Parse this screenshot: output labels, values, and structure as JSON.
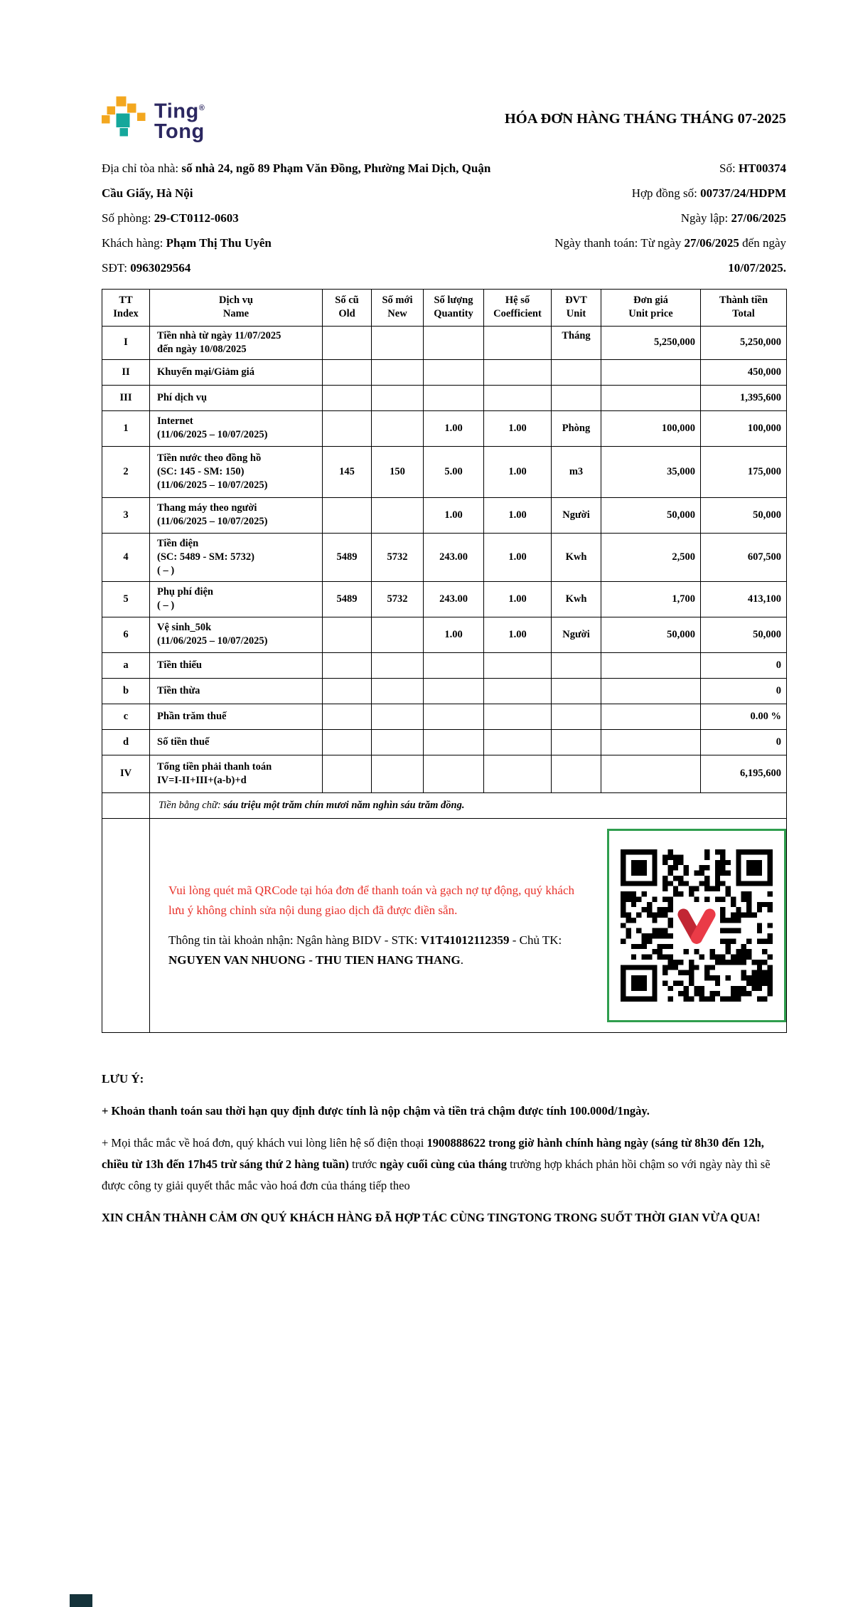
{
  "logo": {
    "line1": "Ting",
    "line2": "Tong",
    "registered": "®"
  },
  "colors": {
    "logo_orange": "#F3A71F",
    "logo_teal": "#15A79B",
    "logo_navy": "#2B2760",
    "accent_red": "#E8312A",
    "qr_frame_green": "#2F9E4E",
    "qr_logo_red": "#E23C43"
  },
  "title": "HÓA ĐƠN HÀNG THÁNG THÁNG 07-2025",
  "header_info": {
    "left": [
      {
        "label": "Địa chỉ tòa nhà: ",
        "value": "số nhà 24, ngõ 89 Phạm Văn Đồng, Phường Mai Dịch, Quận Cầu Giấy, Hà Nội"
      },
      {
        "label": "Số phòng: ",
        "value": "29-CT0112-0603"
      },
      {
        "label": "Khách hàng: ",
        "value": "Phạm Thị Thu Uyên"
      },
      {
        "label": "SĐT: ",
        "value": "0963029564"
      }
    ],
    "right": [
      {
        "label": "Số: ",
        "value": "HT00374"
      },
      {
        "label": "Hợp đồng số: ",
        "value": "00737/24/HDPM"
      },
      {
        "label": "Ngày lập: ",
        "value": "27/06/2025"
      },
      {
        "label": "Ngày thanh toán: Từ ngày ",
        "value": "27/06/2025",
        "label2": " đến ngày ",
        "value2": "10/07/2025."
      }
    ]
  },
  "table": {
    "headers": [
      {
        "vi": "TT",
        "en": "Index"
      },
      {
        "vi": "Dịch vụ",
        "en": "Name"
      },
      {
        "vi": "Số cũ",
        "en": "Old"
      },
      {
        "vi": "Số mới",
        "en": "New"
      },
      {
        "vi": "Số lượng",
        "en": "Quantity"
      },
      {
        "vi": "Hệ số",
        "en": "Coefficient"
      },
      {
        "vi": "ĐVT",
        "en": "Unit"
      },
      {
        "vi": "Đơn giá",
        "en": "Unit price"
      },
      {
        "vi": "Thành tiền",
        "en": "Total"
      }
    ],
    "rows": [
      {
        "tt": "I",
        "d1": "Tiền nhà từ ngày 11/07/2025",
        "d2": "đến ngày 10/08/2025",
        "unit": "Tháng",
        "price": "5,250,000",
        "total": "5,250,000"
      },
      {
        "tt": "II",
        "d1": "Khuyến mại/Giảm giá",
        "total": "450,000"
      },
      {
        "tt": "III",
        "d1": "Phí dịch vụ",
        "total": "1,395,600"
      },
      {
        "tt": "1",
        "d1": "Internet",
        "d2": "(11/06/2025 – 10/07/2025)",
        "qty": "1.00",
        "coef": "1.00",
        "unit": "Phòng",
        "price": "100,000",
        "total": "100,000"
      },
      {
        "tt": "2",
        "d1": "Tiền nước theo đồng hồ",
        "d2": "(SC: 145 - SM: 150)",
        "d3": "(11/06/2025 – 10/07/2025)",
        "old": "145",
        "new": "150",
        "qty": "5.00",
        "coef": "1.00",
        "unit": "m3",
        "price": "35,000",
        "total": "175,000"
      },
      {
        "tt": "3",
        "d1": "Thang máy theo người",
        "d2": "(11/06/2025 – 10/07/2025)",
        "qty": "1.00",
        "coef": "1.00",
        "unit": "Người",
        "price": "50,000",
        "total": "50,000"
      },
      {
        "tt": "4",
        "d1": "Tiền điện",
        "d2": "(SC: 5489 - SM: 5732)",
        "d3": "( – )",
        "old": "5489",
        "new": "5732",
        "qty": "243.00",
        "coef": "1.00",
        "unit": "Kwh",
        "price": "2,500",
        "total": "607,500"
      },
      {
        "tt": "5",
        "d1": "Phụ phí điện",
        "d2": "( – )",
        "old": "5489",
        "new": "5732",
        "qty": "243.00",
        "coef": "1.00",
        "unit": "Kwh",
        "price": "1,700",
        "total": "413,100"
      },
      {
        "tt": "6",
        "d1": "Vệ sinh_50k",
        "d2": "(11/06/2025 – 10/07/2025)",
        "qty": "1.00",
        "coef": "1.00",
        "unit": "Người",
        "price": "50,000",
        "total": "50,000"
      },
      {
        "tt": "a",
        "d1": "Tiền thiếu",
        "total": "0"
      },
      {
        "tt": "b",
        "d1": "Tiền thừa",
        "total": "0"
      },
      {
        "tt": "c",
        "d1": "Phần trăm thuế",
        "total": "0.00 %"
      },
      {
        "tt": "d",
        "d1": "Số tiền thuế",
        "total": "0"
      },
      {
        "tt": "IV",
        "d1": "Tổng tiền phải thanh toán",
        "d2": "IV=I-II+III+(a-b)+d",
        "total": "6,195,600"
      }
    ],
    "amount_in_words": {
      "label": "Tiền bằng chữ: ",
      "value": "sáu triệu một trăm chín mươi năm nghìn sáu trăm đồng."
    }
  },
  "qr_section": {
    "red_note": "Vui lòng quét mã QRCode tại hóa đơn để thanh toán và gạch nợ tự động, quý khách lưu ý không chỉnh sửa nội dung giao dịch đã được điền sẵn.",
    "account": {
      "p1": "Thông tin tài khoản nhận: Ngân hàng BIDV - STK: ",
      "p2": "V1T41012112359",
      "p3": " - Chủ TK: ",
      "p4": "NGUYEN VAN NHUONG - THU TIEN HANG THANG",
      "p5": "."
    }
  },
  "footer": {
    "heading": "LƯU Ý:",
    "note1": "+ Khoản thanh toán sau thời hạn quy định được tính là nộp chậm và tiền trả chậm được tính 100.000d/1ngày.",
    "note2": {
      "p1": "+ Mọi thắc mắc về hoá đơn, quý khách vui lòng liên hệ số điện thoại ",
      "p2": "1900888622 trong giờ hành chính hàng ngày (sáng từ 8h30 đến 12h, chiều từ 13h đến 17h45 trừ sáng thứ 2 hàng tuần)",
      "p3": " trước ",
      "p4": "ngày cuối cùng của tháng",
      "p5": " trường hợp khách phản hồi chậm so với ngày này thì sẽ được công ty giải quyết thắc mắc vào hoá đơn của tháng tiếp theo"
    },
    "thanks": "XIN CHÂN THÀNH CẢM ƠN QUÝ KHÁCH HÀNG ĐÃ HỢP TÁC CÙNG TINGTONG TRONG SUỐT THỜI GIAN VỪA QUA!"
  }
}
